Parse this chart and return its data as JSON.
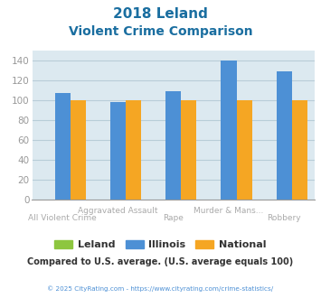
{
  "title_line1": "2018 Leland",
  "title_line2": "Violent Crime Comparison",
  "categories": [
    "All Violent Crime",
    "Aggravated Assault",
    "Rape",
    "Murder & Mans...",
    "Robbery"
  ],
  "xtick_top": [
    "",
    "Aggravated Assault",
    "",
    "Murder & Mans...",
    ""
  ],
  "xtick_bottom": [
    "All Violent Crime",
    "",
    "Rape",
    "",
    "Robbery"
  ],
  "series": {
    "Leland": [
      0,
      0,
      0,
      0,
      0
    ],
    "Illinois": [
      107,
      98,
      109,
      140,
      129
    ],
    "National": [
      100,
      100,
      100,
      100,
      100
    ]
  },
  "colors": {
    "Leland": "#8dc63f",
    "Illinois": "#4d90d5",
    "National": "#f5a623"
  },
  "ylim": [
    0,
    150
  ],
  "yticks": [
    0,
    20,
    40,
    60,
    80,
    100,
    120,
    140
  ],
  "grid_color": "#b8cdd8",
  "bg_color": "#dce9f0",
  "title_color": "#1a6ea0",
  "axis_color": "#999999",
  "xlabel_color": "#aaaaaa",
  "legend_label_color": "#333333",
  "footer_text": "Compared to U.S. average. (U.S. average equals 100)",
  "footer_color": "#333333",
  "copyright_text": "© 2025 CityRating.com - https://www.cityrating.com/crime-statistics/",
  "copyright_color": "#4d90d5",
  "bar_width": 0.28
}
